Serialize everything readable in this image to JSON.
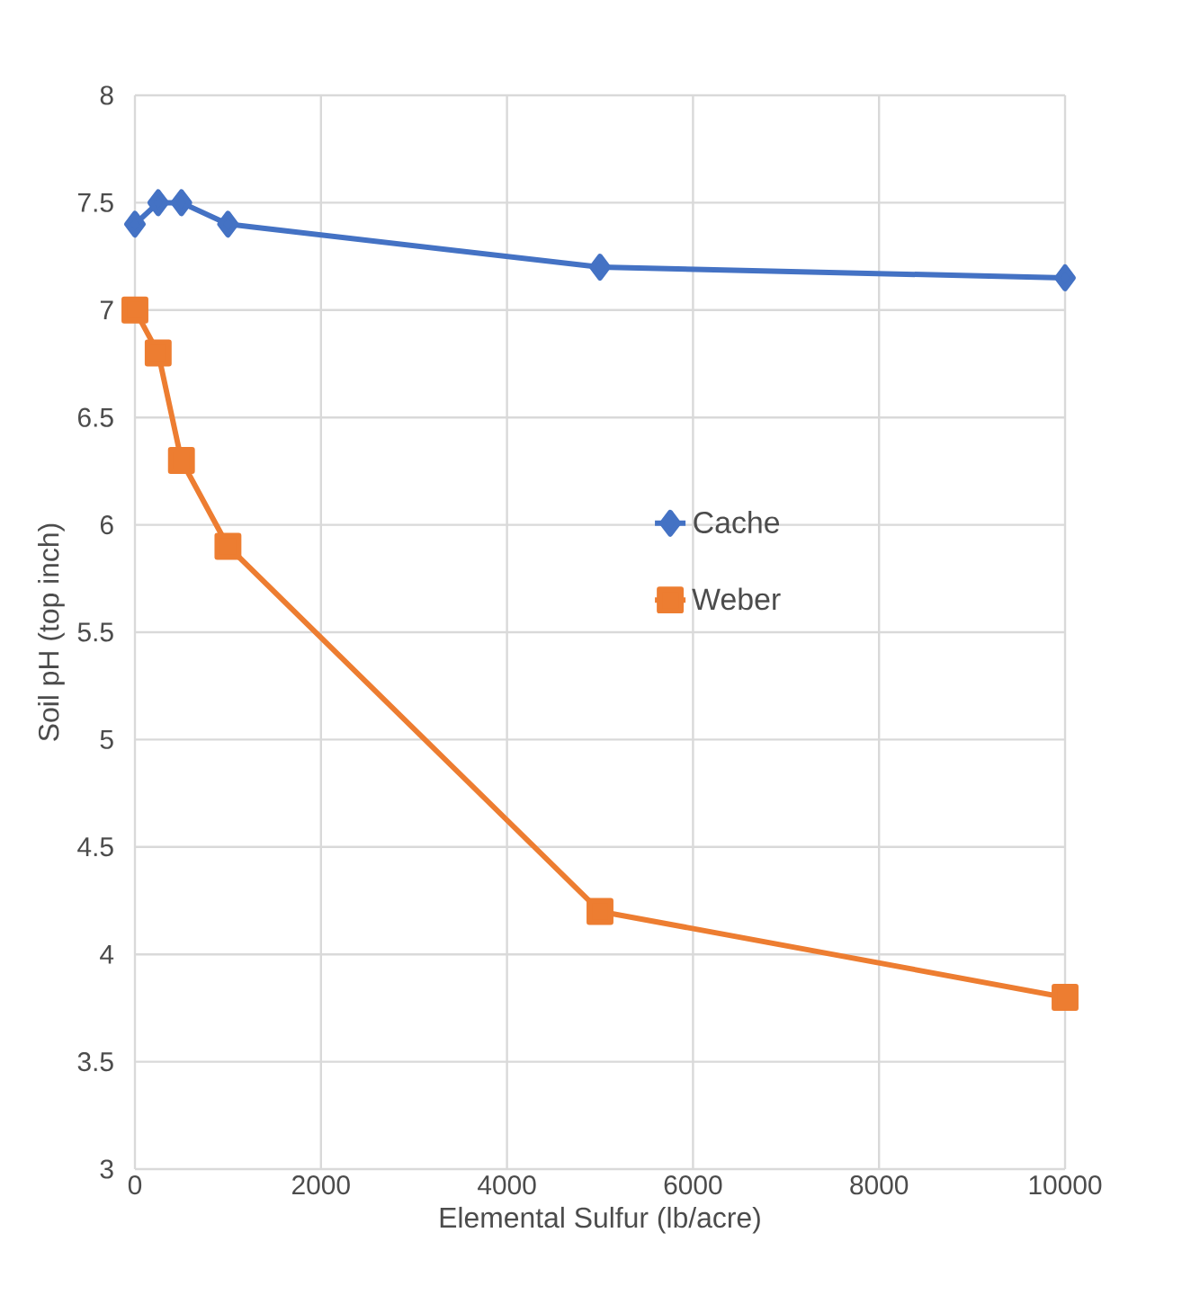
{
  "chart_data": {
    "type": "line",
    "xlabel": "Elemental Sulfur (lb/acre)",
    "ylabel": "Soil pH (top inch)",
    "x": [
      0,
      250,
      500,
      1000,
      5000,
      10000
    ],
    "series": [
      {
        "name": "Cache",
        "color": "#4472c4",
        "marker": "diamond",
        "values": [
          7.4,
          7.5,
          7.5,
          7.4,
          7.2,
          7.15
        ]
      },
      {
        "name": "Weber",
        "color": "#ed7d31",
        "marker": "square",
        "values": [
          7.0,
          6.8,
          6.3,
          5.9,
          4.2,
          3.8
        ]
      }
    ],
    "xlim": [
      0,
      10000
    ],
    "xticks": [
      0,
      2000,
      4000,
      6000,
      8000,
      10000
    ],
    "ylim": [
      3,
      8
    ],
    "yticks": [
      3,
      3.5,
      4,
      4.5,
      5,
      5.5,
      6,
      6.5,
      7,
      7.5,
      8
    ],
    "grid": true,
    "legend": "right",
    "line_style": "solid"
  }
}
